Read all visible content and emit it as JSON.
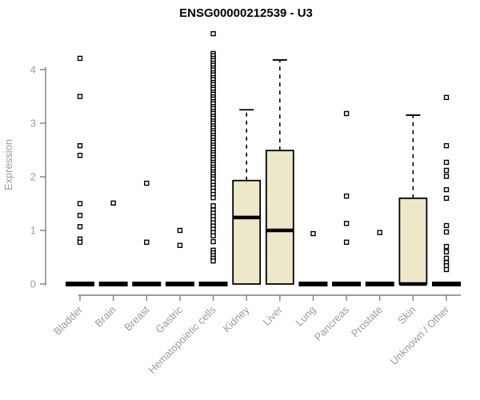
{
  "title": "ENSG00000212539 - U3",
  "colors": {
    "background": "#ffffff",
    "box_fill": "#ece8c9",
    "box_border": "#000000",
    "median": "#000000",
    "whisker": "#000000",
    "outlier_stroke": "#000000",
    "outlier_fill": "#ffffff",
    "axis_line": "#7f7f7f",
    "tick_label": "#9b9b9b",
    "title_color": "#000000"
  },
  "chart_data": {
    "type": "boxplot",
    "title": "ENSG00000212539 - U3",
    "ylabel": "Expression",
    "xlabel": "",
    "ylim": [
      0,
      4.75
    ],
    "yticks": [
      0,
      1,
      2,
      3,
      4
    ],
    "grid": false,
    "legend": false,
    "categories": [
      "Bladder",
      "Brain",
      "Breast",
      "Gastric",
      "Hematopoietic cells",
      "Kidney",
      "Liver",
      "Lung",
      "Pancreas",
      "Prostate",
      "Skin",
      "Unknown / Other"
    ],
    "series": [
      {
        "category": "Bladder",
        "collapsed": true,
        "q1": 0,
        "median": 0,
        "q3": 0,
        "whisker_low": 0,
        "whisker_high": 0,
        "outliers": [
          4.21,
          3.5,
          2.58,
          2.4,
          1.5,
          1.28,
          1.07,
          0.84,
          0.78
        ]
      },
      {
        "category": "Brain",
        "collapsed": true,
        "q1": 0,
        "median": 0,
        "q3": 0,
        "whisker_low": 0,
        "whisker_high": 0,
        "outliers": [
          1.51
        ]
      },
      {
        "category": "Breast",
        "collapsed": true,
        "q1": 0,
        "median": 0,
        "q3": 0,
        "whisker_low": 0,
        "whisker_high": 0,
        "outliers": [
          1.88,
          0.78
        ]
      },
      {
        "category": "Gastric",
        "collapsed": true,
        "q1": 0,
        "median": 0,
        "q3": 0,
        "whisker_low": 0,
        "whisker_high": 0,
        "outliers": [
          1.0,
          0.72
        ]
      },
      {
        "category": "Hematopoietic cells",
        "collapsed": true,
        "q1": 0,
        "median": 0,
        "q3": 0,
        "whisker_low": 0,
        "whisker_high": 0,
        "outliers": [
          4.67,
          4.3,
          4.26,
          4.21,
          4.17,
          4.12,
          4.08,
          4.03,
          3.99,
          3.94,
          3.9,
          3.85,
          3.81,
          3.76,
          3.72,
          3.67,
          3.63,
          3.58,
          3.54,
          3.49,
          3.45,
          3.4,
          3.36,
          3.31,
          3.27,
          3.22,
          3.18,
          3.13,
          3.09,
          3.04,
          3.0,
          2.95,
          2.91,
          2.86,
          2.82,
          2.77,
          2.73,
          2.68,
          2.64,
          2.59,
          2.55,
          2.5,
          2.45,
          2.41,
          2.36,
          2.32,
          2.27,
          2.23,
          2.18,
          2.14,
          2.09,
          2.05,
          2.0,
          1.96,
          1.9,
          1.84,
          1.79,
          1.73,
          1.67,
          1.61,
          1.46,
          1.38,
          1.32,
          1.26,
          1.2,
          1.14,
          1.08,
          1.02,
          0.96,
          0.9,
          0.79,
          0.63,
          0.58,
          0.53,
          0.48,
          0.43
        ]
      },
      {
        "category": "Kidney",
        "collapsed": false,
        "q1": 0,
        "median": 1.24,
        "q3": 1.93,
        "whisker_low": 0,
        "whisker_high": 3.25,
        "outliers": []
      },
      {
        "category": "Liver",
        "collapsed": false,
        "q1": 0,
        "median": 1.0,
        "q3": 2.49,
        "whisker_low": 0,
        "whisker_high": 4.18,
        "outliers": []
      },
      {
        "category": "Lung",
        "collapsed": true,
        "q1": 0,
        "median": 0,
        "q3": 0,
        "whisker_low": 0,
        "whisker_high": 0,
        "outliers": [
          0.94
        ]
      },
      {
        "category": "Pancreas",
        "collapsed": true,
        "q1": 0,
        "median": 0,
        "q3": 0,
        "whisker_low": 0,
        "whisker_high": 0,
        "outliers": [
          3.18,
          1.64,
          1.13,
          0.78
        ]
      },
      {
        "category": "Prostate",
        "collapsed": true,
        "q1": 0,
        "median": 0,
        "q3": 0,
        "whisker_low": 0,
        "whisker_high": 0,
        "outliers": [
          0.96
        ]
      },
      {
        "category": "Skin",
        "collapsed": false,
        "q1": 0,
        "median": 0,
        "q3": 1.6,
        "whisker_low": 0,
        "whisker_high": 3.15,
        "outliers": []
      },
      {
        "category": "Unknown / Other",
        "collapsed": true,
        "q1": 0,
        "median": 0,
        "q3": 0,
        "whisker_low": 0,
        "whisker_high": 0,
        "outliers": [
          3.48,
          2.58,
          2.27,
          2.12,
          2.01,
          1.76,
          1.6,
          1.09,
          0.97,
          0.7,
          0.6,
          0.48,
          0.4,
          0.34,
          0.27
        ]
      }
    ]
  }
}
